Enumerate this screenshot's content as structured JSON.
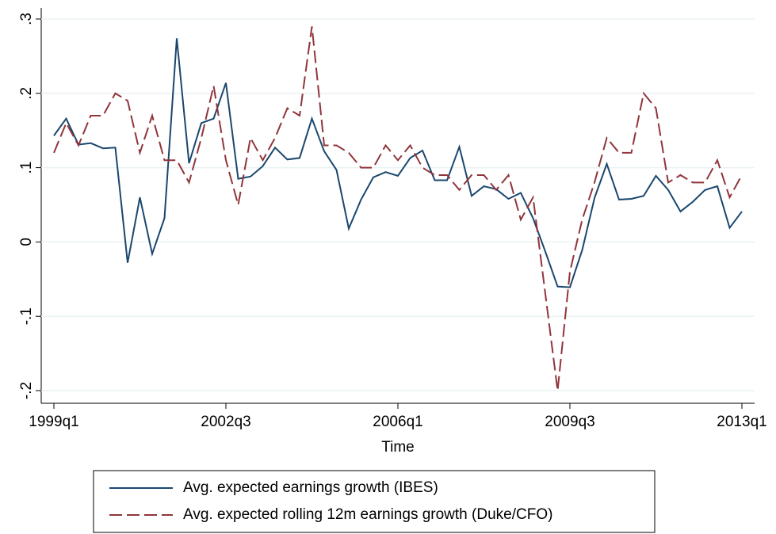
{
  "chart_data": {
    "type": "line",
    "x_label": "Time",
    "categories": [
      "1999q1",
      null,
      null,
      null,
      null,
      null,
      null,
      null,
      null,
      null,
      null,
      null,
      null,
      null,
      "2002q3",
      null,
      null,
      null,
      null,
      null,
      null,
      null,
      null,
      null,
      null,
      null,
      null,
      null,
      "2006q1",
      null,
      null,
      null,
      null,
      null,
      null,
      null,
      null,
      null,
      null,
      null,
      null,
      null,
      "2009q3",
      null,
      null,
      null,
      null,
      null,
      null,
      null,
      null,
      null,
      null,
      null,
      null,
      null,
      "2013q1"
    ],
    "ylim": [
      -0.2,
      0.3
    ],
    "yticks": [
      {
        "value": 0.3,
        "label": ".3"
      },
      {
        "value": 0.2,
        "label": ".2"
      },
      {
        "value": 0.1,
        "label": ".1"
      },
      0,
      {
        "value": -0.1,
        "label": "-.1"
      },
      {
        "value": -0.2,
        "label": "-.2"
      }
    ],
    "grid": true,
    "legend_position": "bottom",
    "series": [
      {
        "name": "Avg. expected earnings growth (IBES)",
        "color": "#1a476f",
        "dash": false,
        "values": [
          0.143,
          0.166,
          0.131,
          0.133,
          0.126,
          0.127,
          -0.028,
          0.06,
          -0.016,
          0.032,
          0.274,
          0.106,
          0.16,
          0.166,
          0.214,
          0.085,
          0.088,
          0.102,
          0.127,
          0.111,
          0.113,
          0.166,
          0.122,
          0.097,
          0.018,
          0.057,
          0.087,
          0.094,
          0.089,
          0.113,
          0.123,
          0.083,
          0.083,
          0.128,
          0.062,
          0.075,
          0.071,
          0.058,
          0.066,
          0.032,
          -0.013,
          -0.06,
          -0.061,
          -0.011,
          0.059,
          0.105,
          0.057,
          0.058,
          0.062,
          0.089,
          0.07,
          0.041,
          0.054,
          0.07,
          0.075,
          0.019,
          0.041
        ]
      },
      {
        "name": "Avg. expected rolling 12m earnings growth (Duke/CFO)",
        "color": "#90353b",
        "dash": true,
        "values": [
          0.12,
          0.16,
          0.13,
          0.17,
          0.17,
          0.2,
          0.19,
          0.12,
          0.17,
          0.11,
          0.11,
          0.08,
          0.14,
          0.21,
          0.11,
          0.05,
          0.14,
          0.11,
          0.14,
          0.18,
          0.17,
          0.29,
          0.13,
          0.13,
          0.12,
          0.1,
          0.1,
          0.13,
          0.11,
          0.13,
          0.1,
          0.09,
          0.09,
          0.07,
          0.09,
          0.09,
          0.07,
          0.09,
          0.03,
          0.06,
          -0.07,
          -0.2,
          -0.04,
          0.03,
          0.08,
          0.14,
          0.12,
          0.12,
          0.2,
          0.18,
          0.08,
          0.09,
          0.08,
          0.08,
          0.11,
          0.06,
          0.09
        ]
      }
    ]
  }
}
